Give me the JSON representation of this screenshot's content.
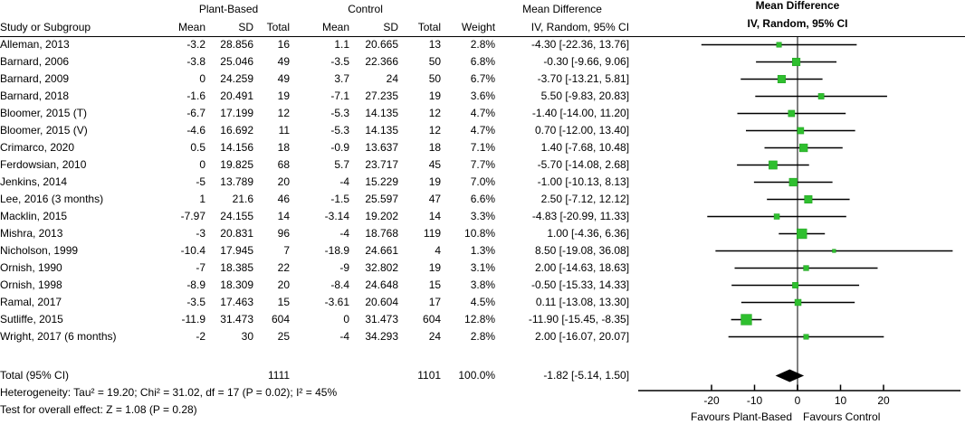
{
  "colors": {
    "marker_green": "#2FBF2F",
    "marker_green_border": "#1E9E1E",
    "ci_line_black": "#000000",
    "zero_line_gray": "#808080",
    "diamond_black": "#000000"
  },
  "header": {
    "group_plant_based": "Plant-Based",
    "group_control": "Control",
    "group_md_text": "Mean Difference",
    "group_md_plot": "Mean Difference",
    "study": "Study or Subgroup",
    "pb_mean": "Mean",
    "pb_sd": "SD",
    "pb_total": "Total",
    "c_mean": "Mean",
    "c_sd": "SD",
    "c_total": "Total",
    "weight": "Weight",
    "ci_text_col": "IV, Random, 95% CI",
    "ci_plot_col": "IV, Random, 95% CI"
  },
  "chart_data": {
    "type": "forest",
    "effect_measure": "Mean Difference",
    "model": "IV, Random, 95% CI",
    "x_axis": {
      "ticks": [
        -20,
        -10,
        0,
        10,
        20
      ],
      "range": [
        -37,
        38.5
      ],
      "favours_left": "Favours Plant-Based",
      "favours_right": "Favours Control"
    },
    "studies": [
      {
        "name": "Alleman, 2013",
        "pb_mean": "-3.2",
        "pb_sd": "28.856",
        "pb_total": "16",
        "c_mean": "1.1",
        "c_sd": "20.665",
        "c_total": "13",
        "weight": "2.8%",
        "ci_text": "-4.30 [-22.36, 13.76]",
        "md": -4.3,
        "lo": -22.36,
        "hi": 13.76,
        "w": 2.8
      },
      {
        "name": "Barnard, 2006",
        "pb_mean": "-3.8",
        "pb_sd": "25.046",
        "pb_total": "49",
        "c_mean": "-3.5",
        "c_sd": "22.366",
        "c_total": "50",
        "weight": "6.8%",
        "ci_text": "-0.30 [-9.66, 9.06]",
        "md": -0.3,
        "lo": -9.66,
        "hi": 9.06,
        "w": 6.8
      },
      {
        "name": "Barnard, 2009",
        "pb_mean": "0",
        "pb_sd": "24.259",
        "pb_total": "49",
        "c_mean": "3.7",
        "c_sd": "24",
        "c_total": "50",
        "weight": "6.7%",
        "ci_text": "-3.70 [-13.21, 5.81]",
        "md": -3.7,
        "lo": -13.21,
        "hi": 5.81,
        "w": 6.7
      },
      {
        "name": "Barnard, 2018",
        "pb_mean": "-1.6",
        "pb_sd": "20.491",
        "pb_total": "19",
        "c_mean": "-7.1",
        "c_sd": "27.235",
        "c_total": "19",
        "weight": "3.6%",
        "ci_text": "5.50 [-9.83, 20.83]",
        "md": 5.5,
        "lo": -9.83,
        "hi": 20.83,
        "w": 3.6
      },
      {
        "name": "Bloomer, 2015 (T)",
        "pb_mean": "-6.7",
        "pb_sd": "17.199",
        "pb_total": "12",
        "c_mean": "-5.3",
        "c_sd": "14.135",
        "c_total": "12",
        "weight": "4.7%",
        "ci_text": "-1.40 [-14.00, 11.20]",
        "md": -1.4,
        "lo": -14.0,
        "hi": 11.2,
        "w": 4.7
      },
      {
        "name": "Bloomer, 2015 (V)",
        "pb_mean": "-4.6",
        "pb_sd": "16.692",
        "pb_total": "11",
        "c_mean": "-5.3",
        "c_sd": "14.135",
        "c_total": "12",
        "weight": "4.7%",
        "ci_text": "0.70 [-12.00, 13.40]",
        "md": 0.7,
        "lo": -12.0,
        "hi": 13.4,
        "w": 4.7
      },
      {
        "name": "Crimarco, 2020",
        "pb_mean": "0.5",
        "pb_sd": "14.156",
        "pb_total": "18",
        "c_mean": "-0.9",
        "c_sd": "13.637",
        "c_total": "18",
        "weight": "7.1%",
        "ci_text": "1.40 [-7.68, 10.48]",
        "md": 1.4,
        "lo": -7.68,
        "hi": 10.48,
        "w": 7.1
      },
      {
        "name": "Ferdowsian, 2010",
        "pb_mean": "0",
        "pb_sd": "19.825",
        "pb_total": "68",
        "c_mean": "5.7",
        "c_sd": "23.717",
        "c_total": "45",
        "weight": "7.7%",
        "ci_text": "-5.70 [-14.08, 2.68]",
        "md": -5.7,
        "lo": -14.08,
        "hi": 2.68,
        "w": 7.7
      },
      {
        "name": "Jenkins, 2014",
        "pb_mean": "-5",
        "pb_sd": "13.789",
        "pb_total": "20",
        "c_mean": "-4",
        "c_sd": "15.229",
        "c_total": "19",
        "weight": "7.0%",
        "ci_text": "-1.00 [-10.13, 8.13]",
        "md": -1.0,
        "lo": -10.13,
        "hi": 8.13,
        "w": 7.0
      },
      {
        "name": "Lee, 2016 (3 months)",
        "pb_mean": "1",
        "pb_sd": "21.6",
        "pb_total": "46",
        "c_mean": "-1.5",
        "c_sd": "25.597",
        "c_total": "47",
        "weight": "6.6%",
        "ci_text": "2.50 [-7.12, 12.12]",
        "md": 2.5,
        "lo": -7.12,
        "hi": 12.12,
        "w": 6.6
      },
      {
        "name": "Macklin, 2015",
        "pb_mean": "-7.97",
        "pb_sd": "24.155",
        "pb_total": "14",
        "c_mean": "-3.14",
        "c_sd": "19.202",
        "c_total": "14",
        "weight": "3.3%",
        "ci_text": "-4.83 [-20.99, 11.33]",
        "md": -4.83,
        "lo": -20.99,
        "hi": 11.33,
        "w": 3.3
      },
      {
        "name": "Mishra, 2013",
        "pb_mean": "-3",
        "pb_sd": "20.831",
        "pb_total": "96",
        "c_mean": "-4",
        "c_sd": "18.768",
        "c_total": "119",
        "weight": "10.8%",
        "ci_text": "1.00 [-4.36, 6.36]",
        "md": 1.0,
        "lo": -4.36,
        "hi": 6.36,
        "w": 10.8
      },
      {
        "name": "Nicholson, 1999",
        "pb_mean": "-10.4",
        "pb_sd": "17.945",
        "pb_total": "7",
        "c_mean": "-18.9",
        "c_sd": "24.661",
        "c_total": "4",
        "weight": "1.3%",
        "ci_text": "8.50 [-19.08, 36.08]",
        "md": 8.5,
        "lo": -19.08,
        "hi": 36.08,
        "w": 1.3
      },
      {
        "name": "Ornish, 1990",
        "pb_mean": "-7",
        "pb_sd": "18.385",
        "pb_total": "22",
        "c_mean": "-9",
        "c_sd": "32.802",
        "c_total": "19",
        "weight": "3.1%",
        "ci_text": "2.00 [-14.63, 18.63]",
        "md": 2.0,
        "lo": -14.63,
        "hi": 18.63,
        "w": 3.1
      },
      {
        "name": "Ornish, 1998",
        "pb_mean": "-8.9",
        "pb_sd": "18.309",
        "pb_total": "20",
        "c_mean": "-8.4",
        "c_sd": "24.648",
        "c_total": "15",
        "weight": "3.8%",
        "ci_text": "-0.50 [-15.33, 14.33]",
        "md": -0.5,
        "lo": -15.33,
        "hi": 14.33,
        "w": 3.8
      },
      {
        "name": "Ramal, 2017",
        "pb_mean": "-3.5",
        "pb_sd": "17.463",
        "pb_total": "15",
        "c_mean": "-3.61",
        "c_sd": "20.604",
        "c_total": "17",
        "weight": "4.5%",
        "ci_text": "0.11 [-13.08, 13.30]",
        "md": 0.11,
        "lo": -13.08,
        "hi": 13.3,
        "w": 4.5
      },
      {
        "name": "Sutliffe, 2015",
        "pb_mean": "-11.9",
        "pb_sd": "31.473",
        "pb_total": "604",
        "c_mean": "0",
        "c_sd": "31.473",
        "c_total": "604",
        "weight": "12.8%",
        "ci_text": "-11.90 [-15.45, -8.35]",
        "md": -11.9,
        "lo": -15.45,
        "hi": -8.35,
        "w": 12.8
      },
      {
        "name": "Wright, 2017 (6 months)",
        "pb_mean": "-2",
        "pb_sd": "30",
        "pb_total": "25",
        "c_mean": "-4",
        "c_sd": "34.293",
        "c_total": "24",
        "weight": "2.8%",
        "ci_text": "2.00 [-16.07, 20.07]",
        "md": 2.0,
        "lo": -16.07,
        "hi": 20.07,
        "w": 2.8
      }
    ],
    "total": {
      "label": "Total (95% CI)",
      "pb_total": "1111",
      "c_total": "1101",
      "weight": "100.0%",
      "ci_text": "-1.82 [-5.14, 1.50]",
      "md": -1.82,
      "lo": -5.14,
      "hi": 1.5
    },
    "heterogeneity": "Heterogeneity: Tau² = 19.20; Chi² = 31.02, df = 17 (P = 0.02); I² = 45%",
    "overall_effect": "Test for overall effect: Z = 1.08 (P = 0.28)"
  }
}
